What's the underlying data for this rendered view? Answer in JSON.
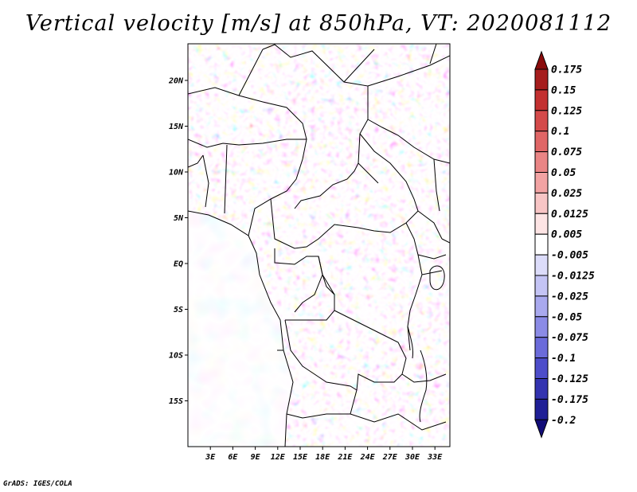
{
  "title": "Vertical velocity [m/s] at 850hPa, VT: 2020081112",
  "credit": "GrADS: IGES/COLA",
  "map": {
    "lat_labels": [
      "20N",
      "15N",
      "10N",
      "5N",
      "EQ",
      "5S",
      "10S",
      "15S"
    ],
    "lon_labels": [
      "3E",
      "6E",
      "9E",
      "12E",
      "15E",
      "18E",
      "21E",
      "24E",
      "27E",
      "30E",
      "33E"
    ],
    "lon_range": [
      0,
      35
    ],
    "lat_range": [
      -20,
      24
    ]
  },
  "colorbar": {
    "labels": [
      "0.175",
      "0.15",
      "0.125",
      "0.1",
      "0.075",
      "0.05",
      "0.025",
      "0.0125",
      "0.005",
      "-0.005",
      "-0.0125",
      "-0.025",
      "-0.05",
      "-0.075",
      "-0.1",
      "-0.125",
      "-0.175",
      "-0.2"
    ],
    "colors": [
      "#8a0b0b",
      "#a61d1d",
      "#c33030",
      "#d44a4a",
      "#e06666",
      "#ea8585",
      "#f2a3a3",
      "#f8c5c5",
      "#fde4e4",
      "#ffffff",
      "#dcdcfa",
      "#c4c4f5",
      "#a9a9ee",
      "#8b8be6",
      "#6b6bda",
      "#4d4dca",
      "#3333b0",
      "#1f1f96",
      "#120d78"
    ]
  }
}
